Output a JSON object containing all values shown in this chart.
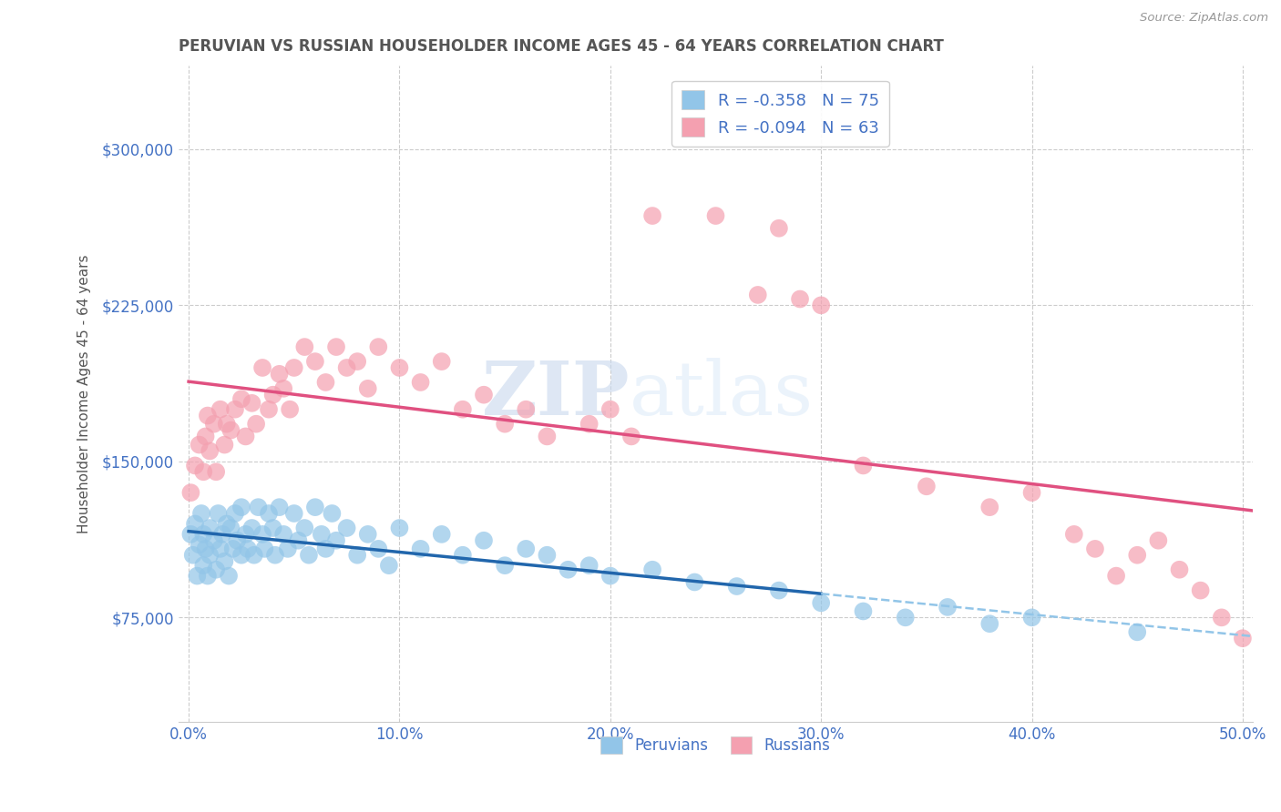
{
  "title": "PERUVIAN VS RUSSIAN HOUSEHOLDER INCOME AGES 45 - 64 YEARS CORRELATION CHART",
  "source": "Source: ZipAtlas.com",
  "ylabel": "Householder Income Ages 45 - 64 years",
  "xlim": [
    -0.005,
    0.505
  ],
  "ylim": [
    25000,
    340000
  ],
  "yticks": [
    75000,
    150000,
    225000,
    300000
  ],
  "ytick_labels": [
    "$75,000",
    "$150,000",
    "$225,000",
    "$300,000"
  ],
  "xticks": [
    0.0,
    0.1,
    0.2,
    0.3,
    0.4,
    0.5
  ],
  "xtick_labels": [
    "0.0%",
    "10.0%",
    "20.0%",
    "30.0%",
    "40.0%",
    "50.0%"
  ],
  "peruvian_color": "#92c5e8",
  "russian_color": "#f4a0b0",
  "peruvian_line_color": "#2166ac",
  "russian_line_color": "#e05080",
  "trend_ext_color": "#92c5e8",
  "R_peruvian": -0.358,
  "N_peruvian": 75,
  "R_russian": -0.094,
  "N_russian": 63,
  "legend_labels": [
    "Peruvians",
    "Russians"
  ],
  "watermark_zip": "ZIP",
  "watermark_atlas": "atlas",
  "background_color": "#ffffff",
  "grid_color": "#cccccc",
  "title_color": "#555555",
  "axis_color": "#4472c4",
  "peruvian_x": [
    0.001,
    0.002,
    0.003,
    0.004,
    0.005,
    0.006,
    0.007,
    0.007,
    0.008,
    0.009,
    0.01,
    0.01,
    0.012,
    0.013,
    0.014,
    0.015,
    0.016,
    0.017,
    0.018,
    0.019,
    0.02,
    0.021,
    0.022,
    0.023,
    0.025,
    0.025,
    0.027,
    0.028,
    0.03,
    0.031,
    0.033,
    0.035,
    0.036,
    0.038,
    0.04,
    0.041,
    0.043,
    0.045,
    0.047,
    0.05,
    0.052,
    0.055,
    0.057,
    0.06,
    0.063,
    0.065,
    0.068,
    0.07,
    0.075,
    0.08,
    0.085,
    0.09,
    0.095,
    0.1,
    0.11,
    0.12,
    0.13,
    0.14,
    0.15,
    0.16,
    0.17,
    0.18,
    0.19,
    0.2,
    0.22,
    0.24,
    0.26,
    0.28,
    0.3,
    0.32,
    0.34,
    0.36,
    0.38,
    0.4,
    0.45
  ],
  "peruvian_y": [
    115000,
    105000,
    120000,
    95000,
    110000,
    125000,
    100000,
    115000,
    108000,
    95000,
    118000,
    105000,
    112000,
    98000,
    125000,
    108000,
    115000,
    102000,
    120000,
    95000,
    118000,
    108000,
    125000,
    112000,
    105000,
    128000,
    115000,
    108000,
    118000,
    105000,
    128000,
    115000,
    108000,
    125000,
    118000,
    105000,
    128000,
    115000,
    108000,
    125000,
    112000,
    118000,
    105000,
    128000,
    115000,
    108000,
    125000,
    112000,
    118000,
    105000,
    115000,
    108000,
    100000,
    118000,
    108000,
    115000,
    105000,
    112000,
    100000,
    108000,
    105000,
    98000,
    100000,
    95000,
    98000,
    92000,
    90000,
    88000,
    82000,
    78000,
    75000,
    80000,
    72000,
    75000,
    68000
  ],
  "russian_x": [
    0.001,
    0.003,
    0.005,
    0.007,
    0.008,
    0.009,
    0.01,
    0.012,
    0.013,
    0.015,
    0.017,
    0.018,
    0.02,
    0.022,
    0.025,
    0.027,
    0.03,
    0.032,
    0.035,
    0.038,
    0.04,
    0.043,
    0.045,
    0.048,
    0.05,
    0.055,
    0.06,
    0.065,
    0.07,
    0.075,
    0.08,
    0.085,
    0.09,
    0.1,
    0.11,
    0.12,
    0.13,
    0.14,
    0.15,
    0.16,
    0.17,
    0.19,
    0.2,
    0.21,
    0.22,
    0.25,
    0.27,
    0.28,
    0.29,
    0.3,
    0.32,
    0.35,
    0.38,
    0.4,
    0.42,
    0.43,
    0.44,
    0.45,
    0.46,
    0.47,
    0.48,
    0.49,
    0.5
  ],
  "russian_y": [
    135000,
    148000,
    158000,
    145000,
    162000,
    172000,
    155000,
    168000,
    145000,
    175000,
    158000,
    168000,
    165000,
    175000,
    180000,
    162000,
    178000,
    168000,
    195000,
    175000,
    182000,
    192000,
    185000,
    175000,
    195000,
    205000,
    198000,
    188000,
    205000,
    195000,
    198000,
    185000,
    205000,
    195000,
    188000,
    198000,
    175000,
    182000,
    168000,
    175000,
    162000,
    168000,
    175000,
    162000,
    268000,
    268000,
    230000,
    262000,
    228000,
    225000,
    148000,
    138000,
    128000,
    135000,
    115000,
    108000,
    95000,
    105000,
    112000,
    98000,
    88000,
    75000,
    65000
  ]
}
